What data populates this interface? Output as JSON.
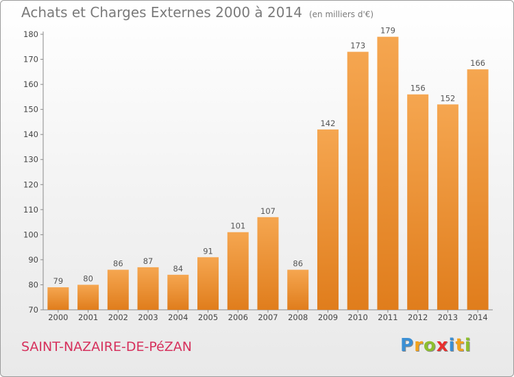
{
  "title": "Achats et Charges Externes 2000 à 2014",
  "subtitle": "(en milliers d'€)",
  "commune": "SAINT-NAZAIRE-DE-PéZAN",
  "logo": {
    "text": "Proxiti",
    "letters": [
      {
        "ch": "P",
        "color": "#3b8fd4"
      },
      {
        "ch": "r",
        "color": "#f2a21c"
      },
      {
        "ch": "o",
        "color": "#8dbf2e"
      },
      {
        "ch": "x",
        "color": "#e8302e"
      },
      {
        "ch": "i",
        "color": "#3b8fd4"
      },
      {
        "ch": "t",
        "color": "#f2a21c"
      },
      {
        "ch": "i",
        "color": "#8dbf2e"
      }
    ]
  },
  "chart_data": {
    "type": "bar",
    "title": "Achats et Charges Externes 2000 à 2014",
    "subtitle": "(en milliers d'€)",
    "xlabel": "",
    "ylabel": "",
    "categories": [
      "2000",
      "2001",
      "2002",
      "2003",
      "2004",
      "2005",
      "2006",
      "2007",
      "2008",
      "2009",
      "2010",
      "2011",
      "2012",
      "2013",
      "2014"
    ],
    "values": [
      79,
      80,
      86,
      87,
      84,
      91,
      101,
      107,
      86,
      142,
      173,
      179,
      156,
      152,
      166
    ],
    "ylim": [
      70,
      180
    ],
    "yticks": [
      70,
      80,
      90,
      100,
      110,
      120,
      130,
      140,
      150,
      160,
      170,
      180
    ],
    "grid": false,
    "legend": "none",
    "bar_color_light": "#f5a650",
    "bar_color_dark": "#e07d1c"
  }
}
